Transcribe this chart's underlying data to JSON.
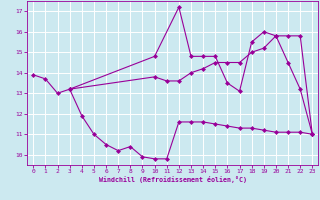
{
  "title": "",
  "xlabel": "Windchill (Refroidissement éolien,°C)",
  "bg_color": "#cce9f0",
  "line_color": "#990099",
  "grid_color": "#ffffff",
  "xlim": [
    -0.5,
    23.5
  ],
  "ylim": [
    9.5,
    17.5
  ],
  "yticks": [
    10,
    11,
    12,
    13,
    14,
    15,
    16,
    17
  ],
  "xticks": [
    0,
    1,
    2,
    3,
    4,
    5,
    6,
    7,
    8,
    9,
    10,
    11,
    12,
    13,
    14,
    15,
    16,
    17,
    18,
    19,
    20,
    21,
    22,
    23
  ],
  "line1_x": [
    0,
    1,
    2,
    3,
    10,
    12,
    13,
    14,
    15,
    16,
    17,
    18,
    19,
    20,
    21,
    22,
    23
  ],
  "line1_y": [
    13.9,
    13.7,
    13.0,
    13.2,
    14.8,
    17.2,
    14.8,
    14.8,
    14.8,
    13.5,
    13.1,
    15.5,
    16.0,
    15.8,
    14.5,
    13.2,
    11.0
  ],
  "line2_x": [
    3,
    10,
    11,
    12,
    13,
    14,
    15,
    16,
    17,
    18,
    19,
    20,
    21,
    22,
    23
  ],
  "line2_y": [
    13.2,
    13.8,
    13.6,
    13.6,
    14.0,
    14.2,
    14.5,
    14.5,
    14.5,
    15.0,
    15.2,
    15.8,
    15.8,
    15.8,
    11.0
  ],
  "line3_x": [
    3,
    4,
    5,
    6,
    7,
    8,
    9,
    10,
    11,
    12,
    13,
    14,
    15,
    16,
    17,
    18,
    19,
    20,
    21,
    22,
    23
  ],
  "line3_y": [
    13.2,
    11.9,
    11.0,
    10.5,
    10.2,
    10.4,
    9.9,
    9.8,
    9.8,
    11.6,
    11.6,
    11.6,
    11.5,
    11.4,
    11.3,
    11.3,
    11.2,
    11.1,
    11.1,
    11.1,
    11.0
  ]
}
